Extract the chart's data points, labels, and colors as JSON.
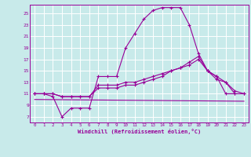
{
  "background_color": "#c8eaea",
  "grid_color": "#ffffff",
  "line_color": "#990099",
  "xlabel": "Windchill (Refroidissement éolien,°C)",
  "xlim": [
    -0.5,
    23.5
  ],
  "ylim": [
    6.0,
    26.5
  ],
  "yticks": [
    7,
    9,
    11,
    13,
    15,
    17,
    19,
    21,
    23,
    25
  ],
  "xticks": [
    0,
    1,
    2,
    3,
    4,
    5,
    6,
    7,
    8,
    9,
    10,
    11,
    12,
    13,
    14,
    15,
    16,
    17,
    18,
    19,
    20,
    21,
    22,
    23
  ],
  "curve1_x": [
    0,
    1,
    2,
    3,
    4,
    5,
    6,
    7,
    8,
    9,
    10,
    11,
    12,
    13,
    14,
    15,
    16,
    17,
    18,
    19,
    20,
    21,
    22
  ],
  "curve1_y": [
    11,
    11,
    10.5,
    7,
    8.5,
    8.5,
    8.5,
    14,
    14,
    14,
    19,
    21.5,
    24,
    25.5,
    26,
    26,
    26,
    23,
    18,
    15,
    14,
    11,
    11
  ],
  "curve2_x": [
    0,
    23
  ],
  "curve2_y": [
    10,
    9.7
  ],
  "curve3_x": [
    0,
    1,
    2,
    3,
    4,
    5,
    6,
    7,
    8,
    9,
    10,
    11,
    12,
    13,
    14,
    15,
    16,
    17,
    18,
    19,
    20,
    21,
    22,
    23
  ],
  "curve3_y": [
    11,
    11,
    11,
    10.5,
    10.5,
    10.5,
    10.5,
    12.5,
    12.5,
    12.5,
    13,
    13,
    13.5,
    14,
    14.5,
    15,
    15.5,
    16.5,
    17.5,
    15,
    13.5,
    13,
    11.5,
    11
  ],
  "curve4_x": [
    0,
    1,
    2,
    3,
    4,
    5,
    6,
    7,
    8,
    9,
    10,
    11,
    12,
    13,
    14,
    15,
    16,
    17,
    18,
    19,
    20,
    21,
    22,
    23
  ],
  "curve4_y": [
    11,
    11,
    11,
    10.5,
    10.5,
    10.5,
    10.5,
    12,
    12,
    12,
    12.5,
    12.5,
    13,
    13.5,
    14,
    15,
    15.5,
    16,
    17,
    15,
    14,
    13,
    11,
    11
  ]
}
